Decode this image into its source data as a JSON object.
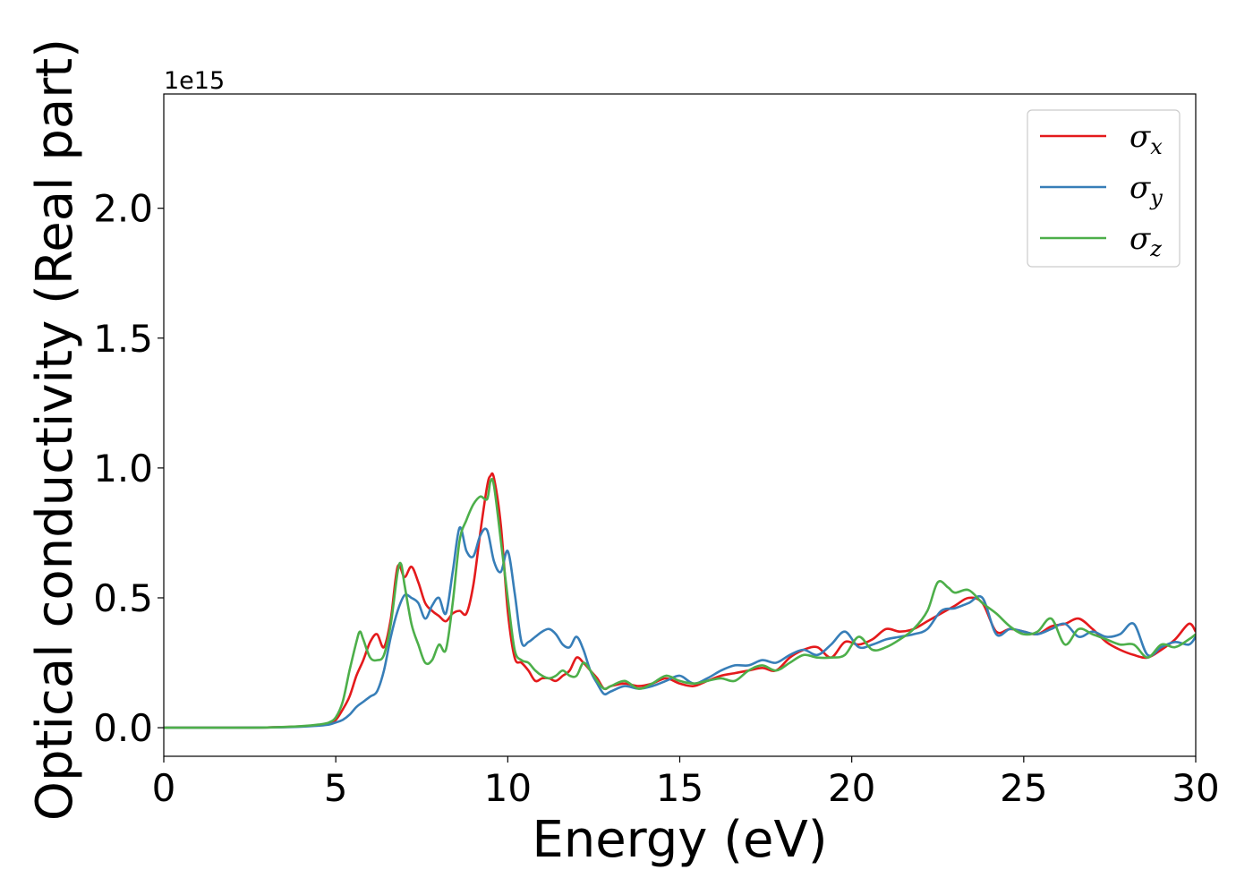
{
  "chart_data": {
    "type": "line",
    "title": "",
    "xlabel": "Energy (eV)",
    "ylabel": "Optical conductivity (Real part)",
    "offset_text": "1e15",
    "xlim": [
      0,
      30
    ],
    "ylim": [
      -0.11,
      2.44
    ],
    "y_scale": 1000000000000000.0,
    "xticks": [
      0,
      5,
      10,
      15,
      20,
      25,
      30
    ],
    "xtick_labels": [
      "0",
      "5",
      "10",
      "15",
      "20",
      "25",
      "30"
    ],
    "yticks": [
      0.0,
      0.5,
      1.0,
      1.5,
      2.0
    ],
    "ytick_labels": [
      "0.0",
      "0.5",
      "1.0",
      "1.5",
      "2.0"
    ],
    "grid": false,
    "legend_position": "upper-right",
    "legend": [
      {
        "symbol": "σ",
        "sub": "x",
        "color": "#e41a1c"
      },
      {
        "symbol": "σ",
        "sub": "y",
        "color": "#377eb8"
      },
      {
        "symbol": "σ",
        "sub": "z",
        "color": "#4daf4a"
      }
    ],
    "series": [
      {
        "color": "#e41a1c",
        "x": [
          0,
          2,
          3,
          4,
          4.5,
          4.8,
          5.0,
          5.2,
          5.4,
          5.6,
          5.8,
          6.0,
          6.2,
          6.4,
          6.6,
          6.8,
          7.0,
          7.2,
          7.4,
          7.6,
          7.8,
          8.0,
          8.2,
          8.4,
          8.6,
          8.8,
          9.0,
          9.2,
          9.4,
          9.5,
          9.6,
          9.8,
          10.0,
          10.2,
          10.4,
          10.6,
          10.8,
          11.0,
          11.2,
          11.4,
          11.6,
          11.8,
          12.0,
          12.2,
          12.4,
          12.6,
          12.8,
          13.0,
          13.4,
          13.8,
          14.2,
          14.6,
          15.0,
          15.4,
          15.8,
          16.2,
          16.6,
          17.0,
          17.4,
          17.8,
          18.2,
          18.6,
          19.0,
          19.4,
          19.8,
          20.2,
          20.6,
          21.0,
          21.4,
          21.8,
          22.2,
          22.6,
          23.0,
          23.4,
          23.8,
          24.2,
          24.6,
          25.0,
          25.4,
          25.8,
          26.2,
          26.6,
          27.0,
          27.4,
          27.8,
          28.2,
          28.6,
          29.0,
          29.4,
          29.8,
          30.0
        ],
        "y": [
          0,
          0,
          0.001,
          0.005,
          0.01,
          0.015,
          0.03,
          0.07,
          0.12,
          0.2,
          0.26,
          0.33,
          0.36,
          0.31,
          0.42,
          0.62,
          0.58,
          0.62,
          0.56,
          0.48,
          0.45,
          0.43,
          0.41,
          0.44,
          0.45,
          0.44,
          0.55,
          0.75,
          0.93,
          0.97,
          0.96,
          0.78,
          0.45,
          0.27,
          0.25,
          0.22,
          0.18,
          0.19,
          0.19,
          0.18,
          0.2,
          0.22,
          0.27,
          0.25,
          0.22,
          0.19,
          0.15,
          0.16,
          0.17,
          0.16,
          0.17,
          0.19,
          0.17,
          0.16,
          0.18,
          0.2,
          0.21,
          0.22,
          0.23,
          0.22,
          0.27,
          0.3,
          0.31,
          0.27,
          0.33,
          0.32,
          0.34,
          0.38,
          0.37,
          0.38,
          0.41,
          0.44,
          0.47,
          0.5,
          0.48,
          0.37,
          0.38,
          0.37,
          0.36,
          0.39,
          0.4,
          0.42,
          0.38,
          0.33,
          0.3,
          0.28,
          0.27,
          0.3,
          0.34,
          0.4,
          0.37
        ]
      },
      {
        "color": "#377eb8",
        "x": [
          0,
          2,
          3,
          4,
          4.5,
          4.8,
          5.0,
          5.2,
          5.4,
          5.6,
          5.8,
          6.0,
          6.2,
          6.4,
          6.6,
          6.8,
          7.0,
          7.2,
          7.4,
          7.6,
          7.8,
          8.0,
          8.2,
          8.4,
          8.6,
          8.8,
          9.0,
          9.2,
          9.4,
          9.6,
          9.8,
          10.0,
          10.2,
          10.4,
          10.6,
          10.8,
          11.0,
          11.2,
          11.4,
          11.6,
          11.8,
          12.0,
          12.2,
          12.4,
          12.6,
          12.8,
          13.0,
          13.4,
          13.8,
          14.2,
          14.6,
          15.0,
          15.4,
          15.8,
          16.2,
          16.6,
          17.0,
          17.4,
          17.8,
          18.2,
          18.6,
          19.0,
          19.4,
          19.8,
          20.2,
          20.6,
          21.0,
          21.4,
          21.8,
          22.2,
          22.6,
          23.0,
          23.4,
          23.8,
          24.2,
          24.6,
          25.0,
          25.4,
          25.8,
          26.2,
          26.6,
          27.0,
          27.4,
          27.8,
          28.2,
          28.6,
          29.0,
          29.4,
          29.8,
          30.0
        ],
        "y": [
          0,
          0,
          0.001,
          0.004,
          0.008,
          0.012,
          0.02,
          0.03,
          0.05,
          0.08,
          0.1,
          0.12,
          0.14,
          0.22,
          0.35,
          0.45,
          0.51,
          0.5,
          0.48,
          0.42,
          0.47,
          0.5,
          0.44,
          0.6,
          0.77,
          0.68,
          0.66,
          0.74,
          0.76,
          0.64,
          0.6,
          0.68,
          0.52,
          0.33,
          0.33,
          0.35,
          0.37,
          0.38,
          0.36,
          0.32,
          0.31,
          0.35,
          0.3,
          0.22,
          0.17,
          0.13,
          0.14,
          0.16,
          0.15,
          0.16,
          0.18,
          0.2,
          0.17,
          0.19,
          0.22,
          0.24,
          0.24,
          0.26,
          0.25,
          0.28,
          0.3,
          0.28,
          0.32,
          0.37,
          0.31,
          0.32,
          0.34,
          0.35,
          0.36,
          0.38,
          0.45,
          0.46,
          0.48,
          0.5,
          0.36,
          0.38,
          0.37,
          0.36,
          0.38,
          0.4,
          0.35,
          0.37,
          0.35,
          0.36,
          0.4,
          0.28,
          0.31,
          0.33,
          0.32,
          0.35
        ]
      },
      {
        "color": "#4daf4a",
        "x": [
          0,
          2,
          3,
          4,
          4.5,
          4.8,
          5.0,
          5.2,
          5.4,
          5.6,
          5.7,
          5.8,
          6.0,
          6.2,
          6.4,
          6.6,
          6.8,
          6.9,
          7.0,
          7.2,
          7.4,
          7.6,
          7.8,
          8.0,
          8.2,
          8.4,
          8.6,
          8.8,
          9.0,
          9.2,
          9.4,
          9.5,
          9.6,
          9.8,
          10.0,
          10.2,
          10.4,
          10.6,
          10.8,
          11.0,
          11.2,
          11.4,
          11.6,
          11.8,
          12.0,
          12.2,
          12.4,
          12.6,
          12.8,
          13.0,
          13.4,
          13.8,
          14.2,
          14.6,
          15.0,
          15.4,
          15.8,
          16.2,
          16.6,
          17.0,
          17.4,
          17.8,
          18.2,
          18.6,
          19.0,
          19.4,
          19.8,
          20.2,
          20.6,
          21.0,
          21.4,
          21.8,
          22.2,
          22.5,
          22.8,
          23.0,
          23.4,
          23.8,
          24.2,
          24.6,
          25.0,
          25.4,
          25.8,
          26.2,
          26.6,
          27.0,
          27.4,
          27.8,
          28.2,
          28.6,
          29.0,
          29.4,
          29.8,
          30.0
        ],
        "y": [
          0,
          0,
          0.001,
          0.006,
          0.012,
          0.02,
          0.04,
          0.1,
          0.22,
          0.33,
          0.37,
          0.34,
          0.27,
          0.26,
          0.28,
          0.4,
          0.6,
          0.63,
          0.55,
          0.4,
          0.32,
          0.25,
          0.26,
          0.32,
          0.3,
          0.48,
          0.72,
          0.8,
          0.86,
          0.89,
          0.88,
          0.95,
          0.93,
          0.72,
          0.5,
          0.3,
          0.26,
          0.25,
          0.22,
          0.2,
          0.19,
          0.2,
          0.22,
          0.2,
          0.2,
          0.25,
          0.22,
          0.18,
          0.15,
          0.16,
          0.18,
          0.15,
          0.17,
          0.2,
          0.18,
          0.17,
          0.18,
          0.19,
          0.18,
          0.22,
          0.24,
          0.22,
          0.25,
          0.28,
          0.27,
          0.27,
          0.28,
          0.35,
          0.3,
          0.31,
          0.34,
          0.38,
          0.45,
          0.56,
          0.54,
          0.52,
          0.53,
          0.48,
          0.44,
          0.39,
          0.36,
          0.37,
          0.42,
          0.32,
          0.38,
          0.36,
          0.34,
          0.32,
          0.32,
          0.27,
          0.32,
          0.31,
          0.34,
          0.36
        ]
      }
    ]
  }
}
